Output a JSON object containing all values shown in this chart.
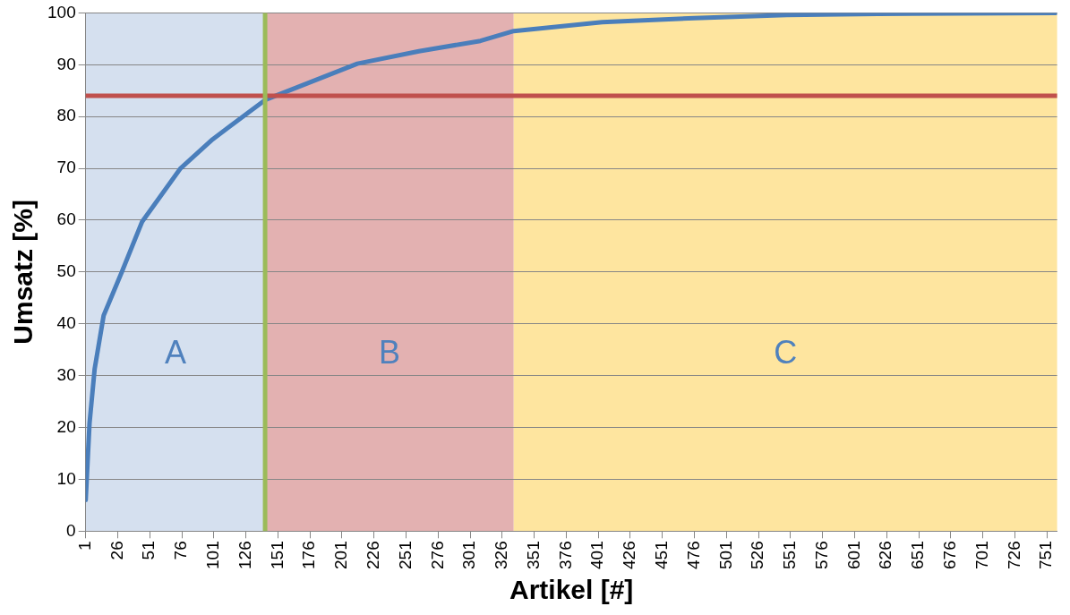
{
  "chart_data": {
    "type": "line",
    "xlabel": "Artikel [#]",
    "ylabel": "Umsatz [%]",
    "series": [
      {
        "color": "#4a7ebb",
        "x": [
          1,
          4,
          8,
          15,
          29,
          45,
          75,
          100,
          141,
          213,
          261,
          309,
          335,
          404,
          476,
          548,
          619,
          758
        ],
        "values": [
          6,
          20.8,
          31.3,
          41.6,
          49.9,
          59.7,
          70,
          75.6,
          83.2,
          90.2,
          92.6,
          94.6,
          96.5,
          98.2,
          99,
          99.6,
          99.8,
          100
        ]
      }
    ],
    "xlim": [
      1,
      759
    ],
    "xticks": [
      1,
      26,
      51,
      76,
      101,
      126,
      151,
      176,
      201,
      226,
      251,
      276,
      301,
      326,
      351,
      376,
      401,
      426,
      451,
      476,
      501,
      526,
      551,
      576,
      601,
      626,
      651,
      676,
      701,
      726,
      751
    ],
    "ylim": [
      0,
      100
    ],
    "yticks": [
      0,
      10,
      20,
      30,
      40,
      50,
      60,
      70,
      80,
      90,
      100
    ],
    "grid": "y",
    "legend": false,
    "marker": "none",
    "line_style": "solid",
    "ref_lines": [
      {
        "axis": "y",
        "value": 84,
        "color": "#c0504d"
      },
      {
        "axis": "x",
        "value": 141,
        "color": "#9bbb59"
      }
    ],
    "bands": [
      {
        "axis": "x",
        "from": 1,
        "to": 141,
        "label": "A",
        "color": "#d5e0ef"
      },
      {
        "axis": "x",
        "from": 141,
        "to": 335,
        "label": "B",
        "color": "#e3b1b1"
      },
      {
        "axis": "x",
        "from": 335,
        "to": 759,
        "label": "C",
        "color": "#fee59f"
      }
    ]
  }
}
